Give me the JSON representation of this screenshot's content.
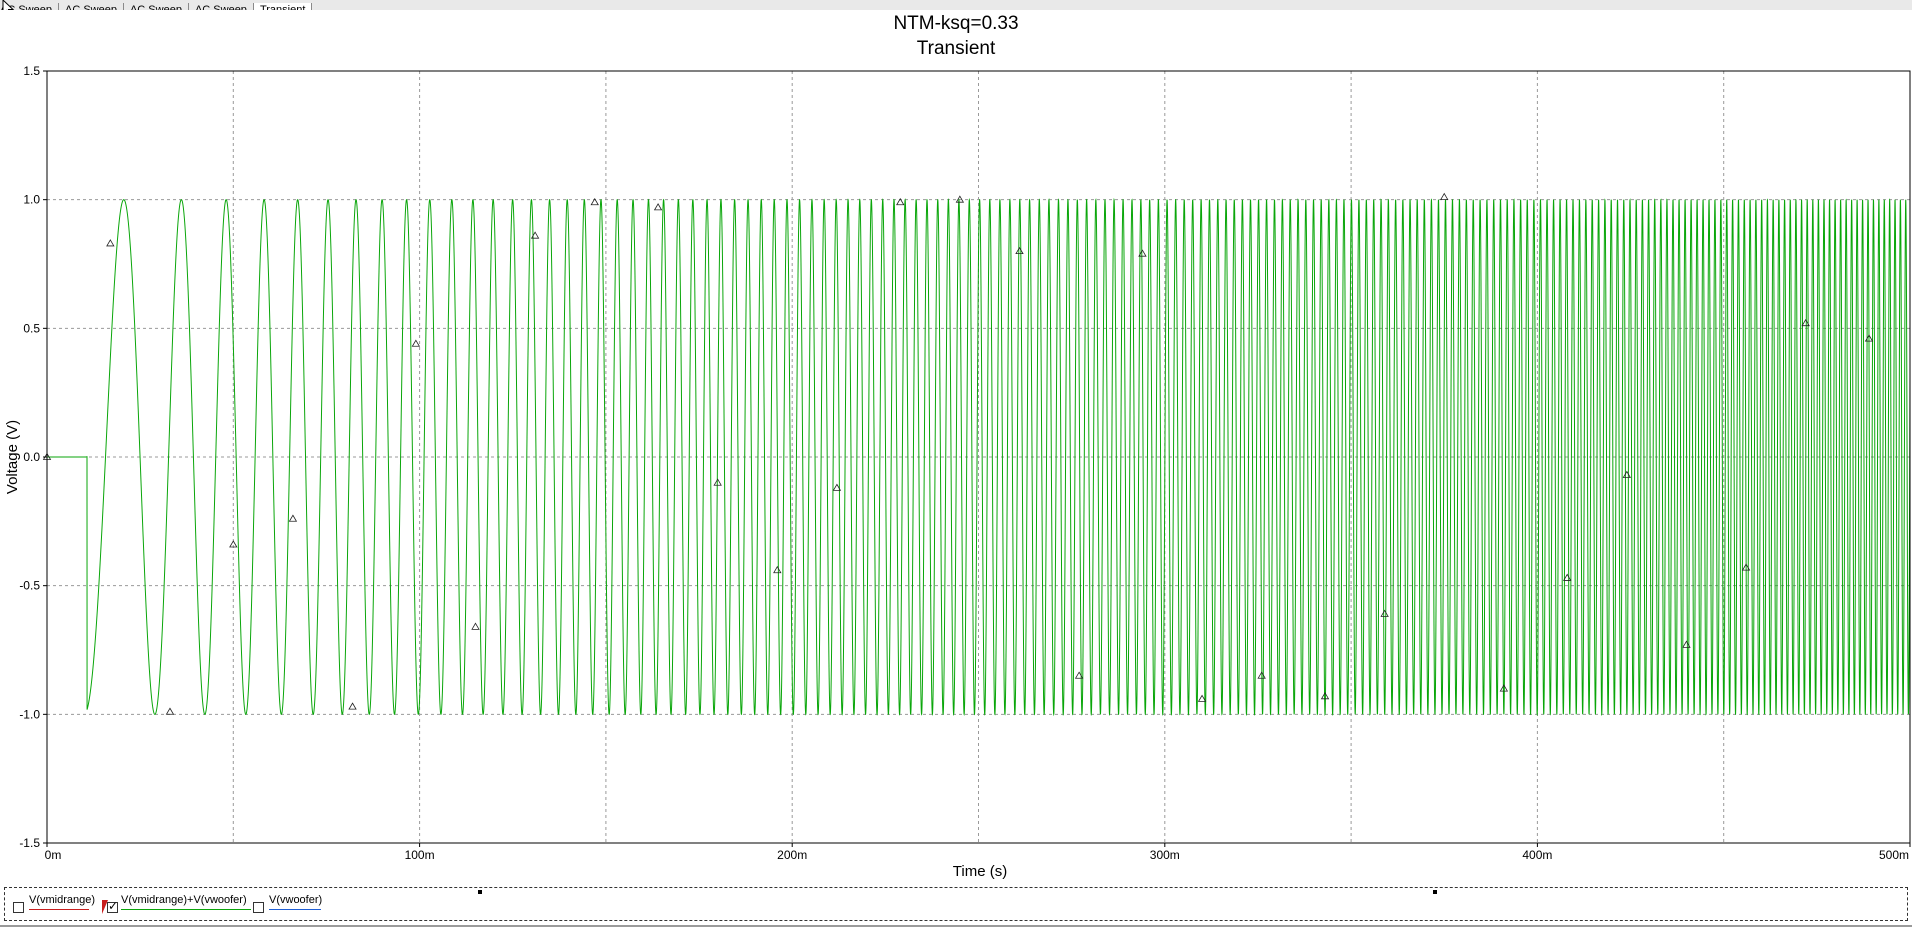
{
  "tabs": [
    {
      "label": "AC Sweep",
      "active": false
    },
    {
      "label": "AC Sweep",
      "active": false
    },
    {
      "label": "AC Sweep",
      "active": false
    },
    {
      "label": "AC Sweep",
      "active": false
    },
    {
      "label": "Transient",
      "active": true
    }
  ],
  "colors": {
    "trace": "#0aa60a",
    "grid": "#9a9a9a",
    "legend_vmidrange": "#c81e1e",
    "legend_sum": "#0aa60a",
    "legend_vwoofer": "#1f5fd6"
  },
  "chart_data": {
    "type": "line",
    "title": "NTM-ksq=0.33",
    "subtitle": "Transient",
    "xlabel": "Time (s)",
    "ylabel": "Voltage (V)",
    "xlim": [
      0,
      0.5
    ],
    "ylim": [
      -1.5,
      1.5
    ],
    "x_ticks": [
      {
        "v": 0,
        "label": "0m"
      },
      {
        "v": 0.1,
        "label": "100m"
      },
      {
        "v": 0.2,
        "label": "200m"
      },
      {
        "v": 0.3,
        "label": "300m"
      },
      {
        "v": 0.4,
        "label": "400m"
      },
      {
        "v": 0.5,
        "label": "500m"
      }
    ],
    "y_ticks": [
      {
        "v": 1.5,
        "label": "1.5"
      },
      {
        "v": 1.0,
        "label": "1.0"
      },
      {
        "v": 0.5,
        "label": "0.5"
      },
      {
        "v": 0.0,
        "label": "0.0"
      },
      {
        "v": -0.5,
        "label": "-0.5"
      },
      {
        "v": -1.0,
        "label": "-1.0"
      },
      {
        "v": -1.5,
        "label": "-1.5"
      }
    ],
    "grid": true,
    "x_grid_minor_step": 0.05,
    "series": [
      {
        "name": "V(vmidrange)+V(vwoofer)",
        "description": "Swept-sine (chirp) starting near 10m, amplitude ≈1.0 V, frequency increasing over time",
        "start_time": 0.01,
        "amplitude": 1.0,
        "markers": [
          {
            "x": 0.0,
            "y": 0.0
          },
          {
            "x": 0.017,
            "y": 0.83
          },
          {
            "x": 0.033,
            "y": -0.99
          },
          {
            "x": 0.05,
            "y": -0.34
          },
          {
            "x": 0.066,
            "y": -0.24
          },
          {
            "x": 0.082,
            "y": -0.97
          },
          {
            "x": 0.099,
            "y": 0.44
          },
          {
            "x": 0.115,
            "y": -0.66
          },
          {
            "x": 0.131,
            "y": 0.86
          },
          {
            "x": 0.147,
            "y": 0.99
          },
          {
            "x": 0.164,
            "y": 0.97
          },
          {
            "x": 0.18,
            "y": -0.1
          },
          {
            "x": 0.196,
            "y": -0.44
          },
          {
            "x": 0.212,
            "y": -0.12
          },
          {
            "x": 0.229,
            "y": 0.99
          },
          {
            "x": 0.245,
            "y": 1.0
          },
          {
            "x": 0.261,
            "y": 0.8
          },
          {
            "x": 0.277,
            "y": -0.85
          },
          {
            "x": 0.294,
            "y": 0.79
          },
          {
            "x": 0.31,
            "y": -0.94
          },
          {
            "x": 0.326,
            "y": -0.85
          },
          {
            "x": 0.343,
            "y": -0.93
          },
          {
            "x": 0.359,
            "y": -0.61
          },
          {
            "x": 0.375,
            "y": 1.01
          },
          {
            "x": 0.391,
            "y": -0.9
          },
          {
            "x": 0.408,
            "y": -0.47
          },
          {
            "x": 0.424,
            "y": -0.07
          },
          {
            "x": 0.44,
            "y": -0.73
          },
          {
            "x": 0.456,
            "y": -0.43
          },
          {
            "x": 0.472,
            "y": 0.52
          },
          {
            "x": 0.489,
            "y": 0.46
          }
        ]
      }
    ]
  },
  "legend": [
    {
      "label": "V(vmidrange)",
      "checked": false
    },
    {
      "label": "V(vmidrange)+V(vwoofer)",
      "checked": true
    },
    {
      "label": "V(vwoofer)",
      "checked": false
    }
  ]
}
